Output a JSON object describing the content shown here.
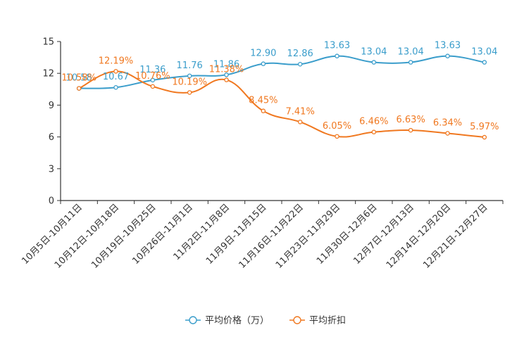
{
  "chart_data": {
    "type": "line",
    "title": "",
    "xlabel": "",
    "ylabel": "",
    "ylim": [
      0,
      15
    ],
    "yticks": [
      0,
      3,
      6,
      9,
      12,
      15
    ],
    "categories": [
      "10月5日-10月11日",
      "10月12日-10月18日",
      "10月19日-10月25日",
      "10月26日-11月1日",
      "11月2日-11月8日",
      "11月9日-11月15日",
      "11月16日-11月22日",
      "11月23日-11月29日",
      "11月30日-12月6日",
      "12月7日-12月13日",
      "12月14日-12月20日",
      "12月21日-12月27日"
    ],
    "series": [
      {
        "name": "平均价格（万）",
        "color": "#3a9dcb",
        "values": [
          10.58,
          10.67,
          11.36,
          11.76,
          11.86,
          12.9,
          12.86,
          13.63,
          13.04,
          13.04,
          13.63,
          13.04
        ],
        "labels": [
          "10.58",
          "10.67",
          "11.36",
          "11.76",
          "11.86",
          "12.90",
          "12.86",
          "13.63",
          "13.04",
          "13.04",
          "13.63",
          "13.04"
        ]
      },
      {
        "name": "平均折扣",
        "color": "#f07820",
        "values": [
          10.58,
          12.19,
          10.76,
          10.19,
          11.38,
          8.45,
          7.41,
          6.05,
          6.46,
          6.63,
          6.34,
          5.97
        ],
        "labels": [
          "10.58%",
          "12.19%",
          "10.76%",
          "10.19%",
          "11.38%",
          "8.45%",
          "7.41%",
          "6.05%",
          "6.46%",
          "6.63%",
          "6.34%",
          "5.97%"
        ]
      }
    ],
    "legend_position": "bottom"
  }
}
